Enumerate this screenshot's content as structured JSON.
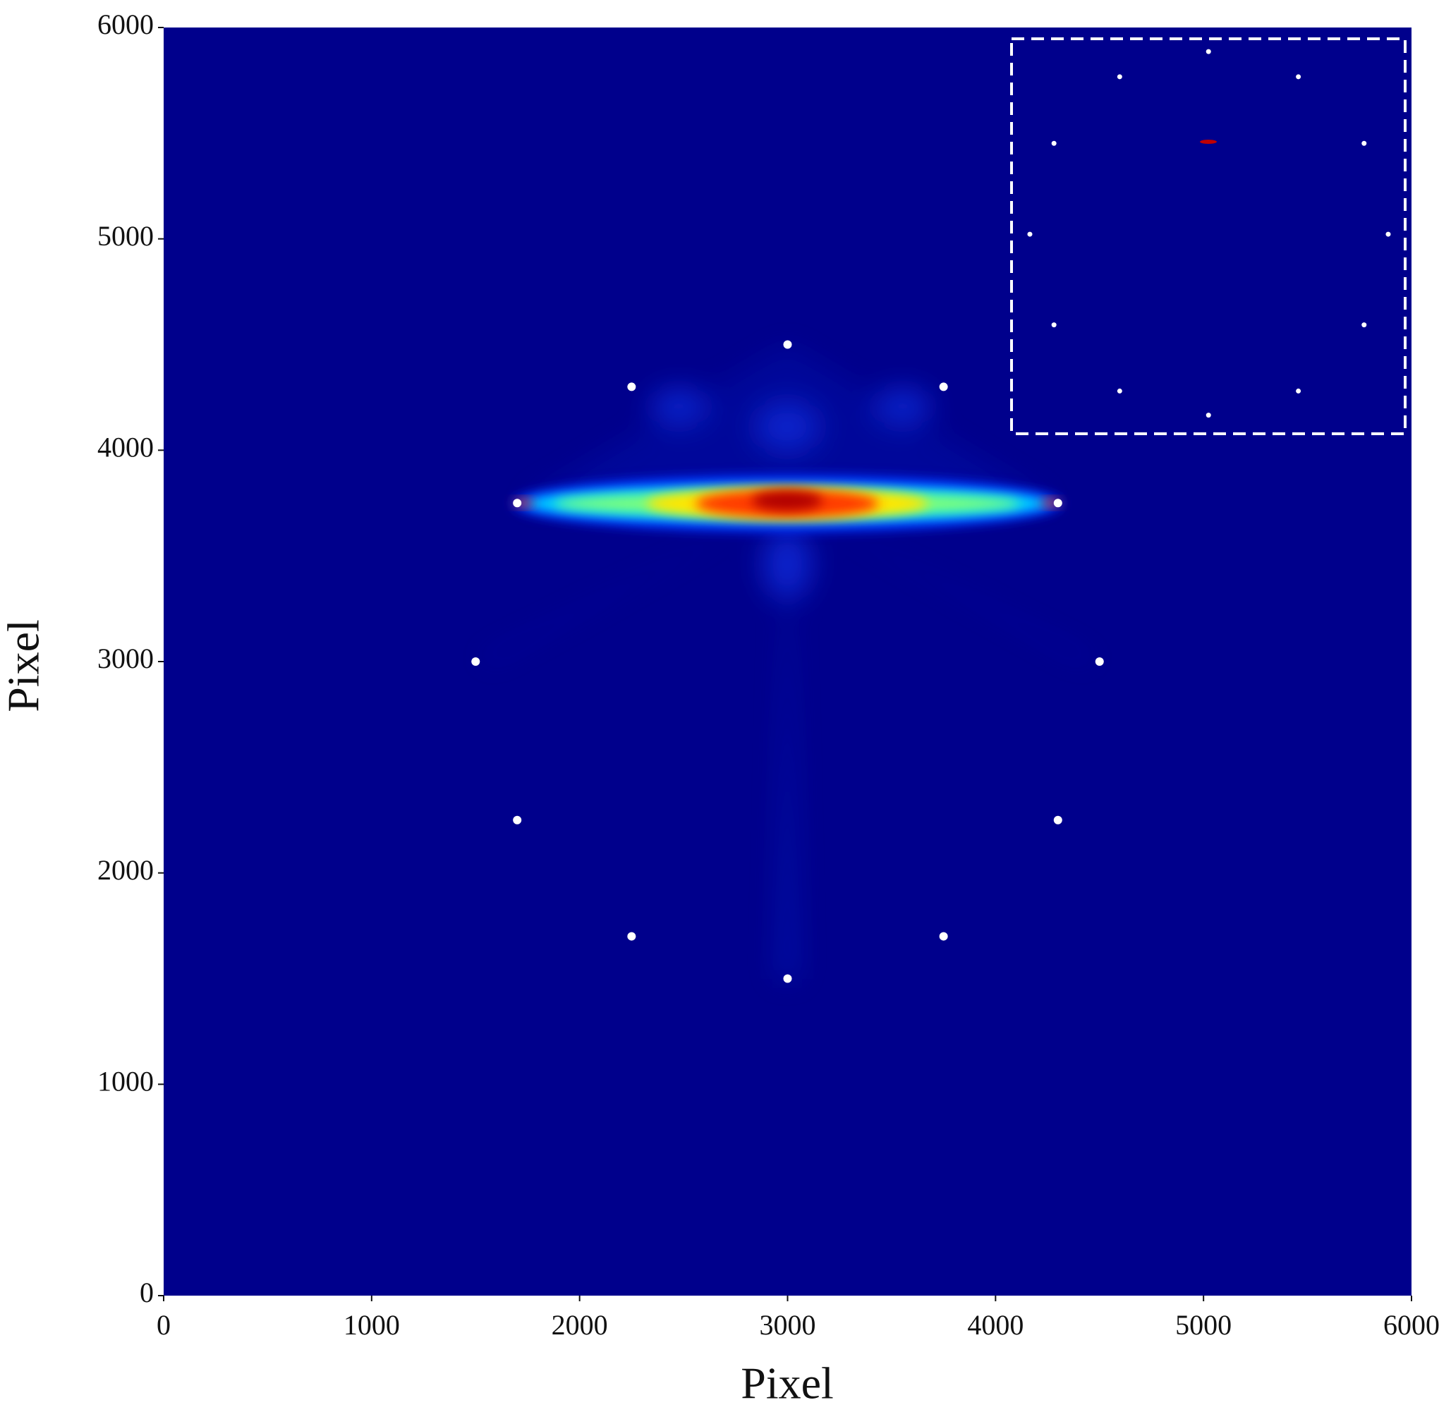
{
  "chart_data": {
    "type": "scatter",
    "xlabel": "Pixel",
    "ylabel": "Pixel",
    "xlim": [
      0,
      6000
    ],
    "ylim": [
      0,
      6000
    ],
    "xticks": [
      0,
      1000,
      2000,
      3000,
      4000,
      5000,
      6000
    ],
    "yticks": [
      0,
      1000,
      2000,
      3000,
      4000,
      5000,
      6000
    ],
    "series": [
      {
        "color": "#ffffff",
        "x": [
          3000,
          2250,
          3750,
          1700,
          4300,
          1500,
          4500,
          1700,
          4300,
          2250,
          3750,
          3000
        ],
        "y": [
          4500,
          4300,
          4300,
          3750,
          3750,
          3000,
          3000,
          2250,
          2250,
          1700,
          1700,
          1500
        ]
      },
      {
        "color": "#ffffff",
        "x": [
          5024,
          4597,
          5456,
          4281,
          5772,
          4165,
          5888,
          4281,
          5772,
          4597,
          5456,
          5024
        ],
        "y": [
          5886,
          5767,
          5767,
          5452,
          5452,
          5022,
          5022,
          4593,
          4593,
          4280,
          4280,
          4166
        ]
      }
    ]
  }
}
